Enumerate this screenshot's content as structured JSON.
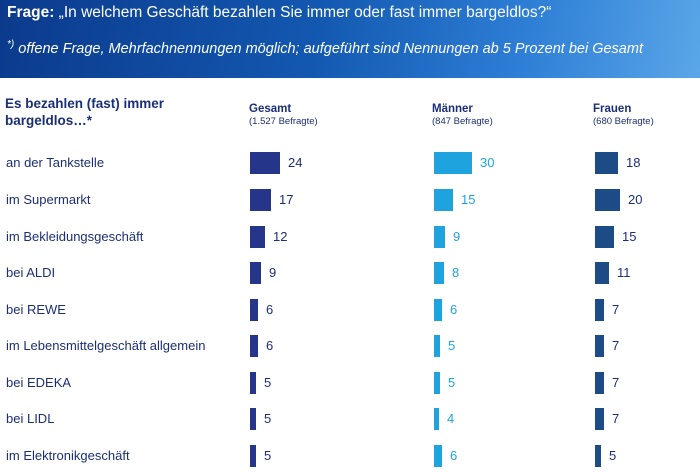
{
  "header": {
    "question_label": "Frage:",
    "question_text": " „In welchem Geschäft bezahlen Sie immer oder fast immer bargeldlos?“",
    "note_marker": "*)",
    "note_text": " offene Frage, Mehrfachnennungen möglich; aufgeführt sind Nennungen ab 5 Prozent bei Gesamt"
  },
  "chart_data": {
    "type": "bar",
    "orientation": "horizontal",
    "row_header": "Es bezahlen (fast) immer bargeldlos…*",
    "categories": [
      "an der Tankstelle",
      "im Supermarkt",
      "im Bekleidungsgeschäft",
      "bei ALDI",
      "bei REWE",
      "im Lebensmittelgeschäft allgemein",
      "bei EDEKA",
      "bei LIDL",
      "im Elektronikgeschäft"
    ],
    "series": [
      {
        "name": "Gesamt",
        "note": "(1.527 Befragte)",
        "color": "#25368a",
        "values": [
          24,
          17,
          12,
          9,
          6,
          6,
          5,
          5,
          5
        ]
      },
      {
        "name": "Männer",
        "note": "(847 Befragte)",
        "color": "#1fa3df",
        "values": [
          30,
          15,
          9,
          8,
          6,
          5,
          5,
          4,
          6
        ]
      },
      {
        "name": "Frauen",
        "note": "(680 Befragte)",
        "color": "#1c4b86",
        "values": [
          18,
          20,
          15,
          11,
          7,
          7,
          7,
          7,
          5
        ]
      }
    ]
  }
}
